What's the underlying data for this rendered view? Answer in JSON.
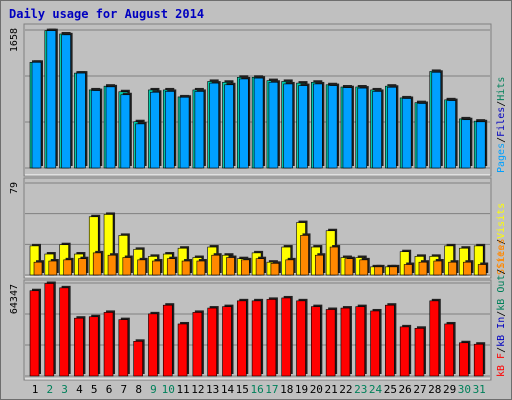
{
  "title": "Daily usage for August 2014",
  "chart_data": [
    {
      "type": "bar",
      "categories": [
        "1",
        "2",
        "3",
        "4",
        "5",
        "6",
        "7",
        "8",
        "9",
        "10",
        "11",
        "12",
        "13",
        "14",
        "15",
        "16",
        "17",
        "18",
        "19",
        "20",
        "21",
        "22",
        "23",
        "24",
        "25",
        "26",
        "27",
        "28",
        "29",
        "30",
        "31"
      ],
      "weekend_categories": [
        "2",
        "3",
        "9",
        "10",
        "16",
        "17",
        "23",
        "24",
        "30",
        "31"
      ],
      "ylabel_max": "1658",
      "ylim": [
        0,
        1658
      ],
      "legend": [
        "Pages",
        "/",
        "Files",
        "/",
        "Hits"
      ],
      "series": [
        {
          "name": "Hits",
          "color": "#00ccaa",
          "values": [
            1270,
            1650,
            1610,
            1140,
            938,
            983,
            916,
            556,
            938,
            938,
            854,
            938,
            1040,
            1030,
            1090,
            1090,
            1050,
            1040,
            1020,
            1030,
            1000,
            973,
            973,
            938,
            983,
            842,
            785,
            1160,
            819,
            590,
            563
          ]
        },
        {
          "name": "Files",
          "color": "#00a0ff",
          "values": [
            1270,
            1650,
            1600,
            1140,
            930,
            975,
            880,
            530,
            910,
            920,
            850,
            920,
            1020,
            1000,
            1070,
            1080,
            1030,
            1010,
            990,
            1010,
            990,
            965,
            960,
            920,
            970,
            835,
            775,
            1150,
            810,
            580,
            555
          ]
        }
      ]
    },
    {
      "type": "bar",
      "categories": [
        "1",
        "2",
        "3",
        "4",
        "5",
        "6",
        "7",
        "8",
        "9",
        "10",
        "11",
        "12",
        "13",
        "14",
        "15",
        "16",
        "17",
        "18",
        "19",
        "20",
        "21",
        "22",
        "23",
        "24",
        "25",
        "26",
        "27",
        "28",
        "29",
        "30",
        "31"
      ],
      "ylabel_max": "79",
      "ylim": [
        0,
        79
      ],
      "legend": [
        "Sites",
        "/",
        "Visits"
      ],
      "series": [
        {
          "name": "Visits",
          "color": "#ffff00",
          "values": [
            25,
            18,
            26,
            18,
            50,
            52,
            34,
            22,
            16,
            18,
            23,
            15,
            24,
            17,
            14,
            19,
            11,
            24,
            45,
            24,
            38,
            15,
            15,
            7,
            7,
            20,
            16,
            16,
            25,
            23,
            25
          ]
        },
        {
          "name": "Sites",
          "color": "#ff8800",
          "values": [
            11,
            12,
            13,
            14,
            19,
            17,
            15,
            13,
            12,
            14,
            12,
            12,
            17,
            15,
            13,
            14,
            10,
            13,
            34,
            17,
            24,
            14,
            13,
            7,
            7,
            9,
            11,
            12,
            11,
            11,
            9
          ]
        }
      ]
    },
    {
      "type": "bar",
      "categories": [
        "1",
        "2",
        "3",
        "4",
        "5",
        "6",
        "7",
        "8",
        "9",
        "10",
        "11",
        "12",
        "13",
        "14",
        "15",
        "16",
        "17",
        "18",
        "19",
        "20",
        "21",
        "22",
        "23",
        "24",
        "25",
        "26",
        "27",
        "28",
        "29",
        "30",
        "31"
      ],
      "ylabel_max": "64347",
      "ylim": [
        0,
        64347
      ],
      "legend": [
        "kB F",
        "/",
        "kB In",
        "/",
        "kB Out",
        "/",
        "Sites"
      ],
      "series": [
        {
          "name": "kB F",
          "color": "#ff0000",
          "values": [
            59000,
            64000,
            61000,
            40000,
            41000,
            44000,
            39000,
            24000,
            43000,
            49000,
            36000,
            44000,
            47000,
            48000,
            52000,
            52000,
            53000,
            54000,
            52000,
            48000,
            46000,
            47000,
            48000,
            45000,
            49000,
            34000,
            33000,
            52000,
            36000,
            23000,
            22000
          ]
        }
      ]
    }
  ]
}
